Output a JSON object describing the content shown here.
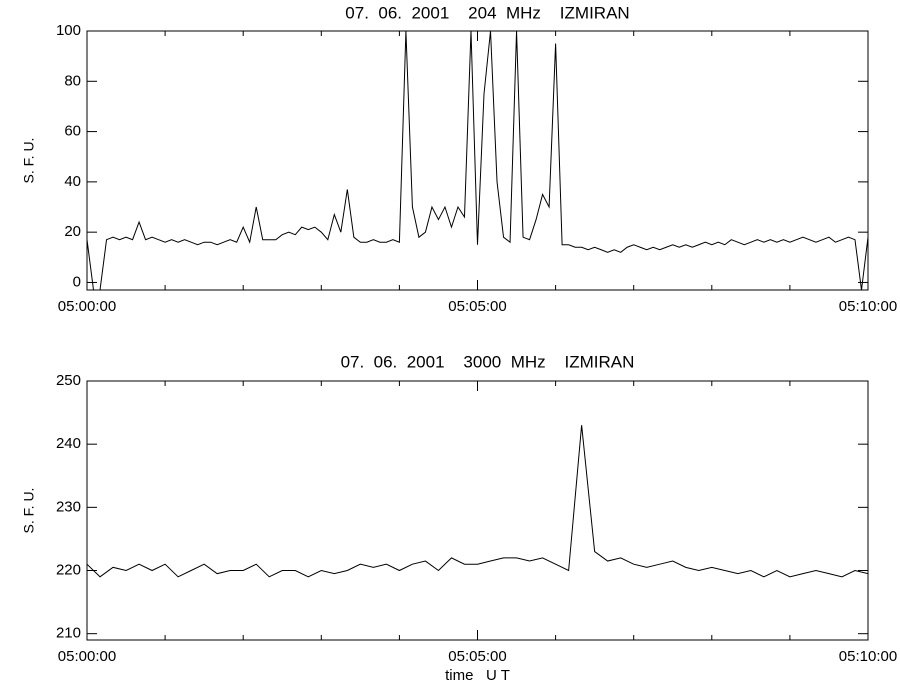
{
  "chart_data": [
    {
      "type": "line",
      "title": "07.  06.  2001    204  MHz    IZMIRAN",
      "ylabel": "S. F. U.",
      "color": "#000000",
      "xlim": [
        "05:00:00",
        "05:10:00"
      ],
      "xticks": [
        "05:00:00",
        "05:05:00",
        "05:10:00"
      ],
      "xminorticks": [
        "05:01:00",
        "05:02:00",
        "05:03:00",
        "05:04:00",
        "05:06:00",
        "05:07:00",
        "05:08:00",
        "05:09:00"
      ],
      "ylim": [
        -3,
        100
      ],
      "yticks": [
        0,
        20,
        40,
        60,
        80,
        100
      ],
      "x": [
        "05:00:00",
        "05:00:05",
        "05:00:10",
        "05:00:15",
        "05:00:20",
        "05:00:25",
        "05:00:30",
        "05:00:35",
        "05:00:40",
        "05:00:45",
        "05:00:50",
        "05:00:55",
        "05:01:00",
        "05:01:05",
        "05:01:10",
        "05:01:15",
        "05:01:20",
        "05:01:25",
        "05:01:30",
        "05:01:35",
        "05:01:40",
        "05:01:45",
        "05:01:50",
        "05:01:55",
        "05:02:00",
        "05:02:05",
        "05:02:10",
        "05:02:15",
        "05:02:20",
        "05:02:25",
        "05:02:30",
        "05:02:35",
        "05:02:40",
        "05:02:45",
        "05:02:50",
        "05:02:55",
        "05:03:00",
        "05:03:05",
        "05:03:10",
        "05:03:15",
        "05:03:20",
        "05:03:25",
        "05:03:30",
        "05:03:35",
        "05:03:40",
        "05:03:45",
        "05:03:50",
        "05:03:55",
        "05:04:00",
        "05:04:05",
        "05:04:10",
        "05:04:15",
        "05:04:20",
        "05:04:25",
        "05:04:30",
        "05:04:35",
        "05:04:40",
        "05:04:45",
        "05:04:50",
        "05:04:55",
        "05:05:00",
        "05:05:05",
        "05:05:10",
        "05:05:15",
        "05:05:20",
        "05:05:25",
        "05:05:30",
        "05:05:35",
        "05:05:40",
        "05:05:45",
        "05:05:50",
        "05:05:55",
        "05:06:00",
        "05:06:05",
        "05:06:10",
        "05:06:15",
        "05:06:20",
        "05:06:25",
        "05:06:30",
        "05:06:35",
        "05:06:40",
        "05:06:45",
        "05:06:50",
        "05:06:55",
        "05:07:00",
        "05:07:05",
        "05:07:10",
        "05:07:15",
        "05:07:20",
        "05:07:25",
        "05:07:30",
        "05:07:35",
        "05:07:40",
        "05:07:45",
        "05:07:50",
        "05:07:55",
        "05:08:00",
        "05:08:05",
        "05:08:10",
        "05:08:15",
        "05:08:20",
        "05:08:25",
        "05:08:30",
        "05:08:35",
        "05:08:40",
        "05:08:45",
        "05:08:50",
        "05:08:55",
        "05:09:00",
        "05:09:05",
        "05:09:10",
        "05:09:15",
        "05:09:20",
        "05:09:25",
        "05:09:30",
        "05:09:35",
        "05:09:40",
        "05:09:45",
        "05:09:50",
        "05:09:55",
        "05:10:00"
      ],
      "values": [
        17,
        -3,
        -3,
        17,
        18,
        17,
        18,
        17,
        24,
        17,
        18,
        17,
        16,
        17,
        16,
        17,
        16,
        15,
        16,
        16,
        15,
        16,
        17,
        16,
        22,
        16,
        30,
        17,
        17,
        17,
        19,
        20,
        19,
        22,
        21,
        22,
        20,
        17,
        27,
        20,
        37,
        18,
        16,
        16,
        17,
        16,
        16,
        17,
        16,
        100,
        30,
        18,
        20,
        30,
        25,
        30,
        22,
        30,
        26,
        100,
        15,
        75,
        100,
        40,
        18,
        16,
        100,
        18,
        17,
        25,
        35,
        30,
        95,
        15,
        15,
        14,
        14,
        13,
        14,
        13,
        12,
        13,
        12,
        14,
        15,
        14,
        13,
        14,
        13,
        14,
        15,
        14,
        15,
        14,
        15,
        16,
        15,
        16,
        15,
        17,
        16,
        15,
        16,
        17,
        16,
        17,
        16,
        17,
        16,
        17,
        18,
        17,
        16,
        17,
        18,
        16,
        17,
        18,
        17,
        -3,
        18
      ]
    },
    {
      "type": "line",
      "title": "07.  06.  2001    3000  MHz    IZMIRAN",
      "ylabel": "S. F. U.",
      "xlabel": "time   U T",
      "color": "#000000",
      "xlim": [
        "05:00:00",
        "05:10:00"
      ],
      "xticks": [
        "05:00:00",
        "05:05:00",
        "05:10:00"
      ],
      "xminorticks": [
        "05:01:00",
        "05:02:00",
        "05:03:00",
        "05:04:00",
        "05:06:00",
        "05:07:00",
        "05:08:00",
        "05:09:00"
      ],
      "ylim": [
        209,
        250
      ],
      "yticks": [
        210,
        220,
        230,
        240,
        250
      ],
      "x": [
        "05:00:00",
        "05:00:10",
        "05:00:20",
        "05:00:30",
        "05:00:40",
        "05:00:50",
        "05:01:00",
        "05:01:10",
        "05:01:20",
        "05:01:30",
        "05:01:40",
        "05:01:50",
        "05:02:00",
        "05:02:10",
        "05:02:20",
        "05:02:30",
        "05:02:40",
        "05:02:50",
        "05:03:00",
        "05:03:10",
        "05:03:20",
        "05:03:30",
        "05:03:40",
        "05:03:50",
        "05:04:00",
        "05:04:10",
        "05:04:20",
        "05:04:30",
        "05:04:40",
        "05:04:50",
        "05:05:00",
        "05:05:10",
        "05:05:20",
        "05:05:30",
        "05:05:40",
        "05:05:50",
        "05:06:00",
        "05:06:10",
        "05:06:20",
        "05:06:30",
        "05:06:40",
        "05:06:50",
        "05:07:00",
        "05:07:10",
        "05:07:20",
        "05:07:30",
        "05:07:40",
        "05:07:50",
        "05:08:00",
        "05:08:10",
        "05:08:20",
        "05:08:30",
        "05:08:40",
        "05:08:50",
        "05:09:00",
        "05:09:10",
        "05:09:20",
        "05:09:30",
        "05:09:40",
        "05:09:50",
        "05:10:00"
      ],
      "values": [
        221,
        219,
        220.5,
        220,
        221,
        220,
        221,
        219,
        220,
        221,
        219.5,
        220,
        220,
        221,
        219,
        220,
        220,
        219,
        220,
        219.5,
        220,
        221,
        220.5,
        221,
        220,
        221,
        221.5,
        220,
        222,
        221,
        221,
        221.5,
        222,
        222,
        221.5,
        222,
        221,
        220,
        243,
        223,
        221.5,
        222,
        221,
        220.5,
        221,
        221.5,
        220.5,
        220,
        220.5,
        220,
        219.5,
        220,
        219,
        220,
        219,
        219.5,
        220,
        219.5,
        219,
        220,
        219.5
      ]
    }
  ]
}
